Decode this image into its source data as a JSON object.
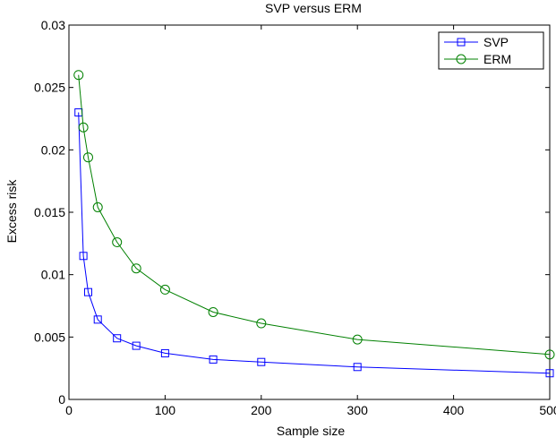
{
  "chart_data": {
    "type": "line",
    "title": "SVP versus ERM",
    "xlabel": "Sample size",
    "ylabel": "Excess risk",
    "xlim": [
      0,
      500
    ],
    "ylim": [
      0,
      0.03
    ],
    "xticks": [
      "0",
      "100",
      "200",
      "300",
      "400",
      "500"
    ],
    "yticks": [
      "0",
      "0.005",
      "0.01",
      "0.015",
      "0.02",
      "0.025",
      "0.03"
    ],
    "grid": false,
    "legend_position": "top-right",
    "series": [
      {
        "name": "SVP",
        "color": "#0000ff",
        "marker": "square",
        "x": [
          10,
          15,
          20,
          30,
          50,
          70,
          100,
          150,
          200,
          300,
          500
        ],
        "y": [
          0.023,
          0.0115,
          0.0086,
          0.0064,
          0.0049,
          0.0043,
          0.0037,
          0.0032,
          0.003,
          0.0026,
          0.0021
        ]
      },
      {
        "name": "ERM",
        "color": "#008000",
        "marker": "circle",
        "x": [
          10,
          15,
          20,
          30,
          50,
          70,
          100,
          150,
          200,
          300,
          500
        ],
        "y": [
          0.026,
          0.0218,
          0.0194,
          0.0154,
          0.0126,
          0.0105,
          0.0088,
          0.007,
          0.0061,
          0.0048,
          0.0036
        ]
      }
    ]
  }
}
